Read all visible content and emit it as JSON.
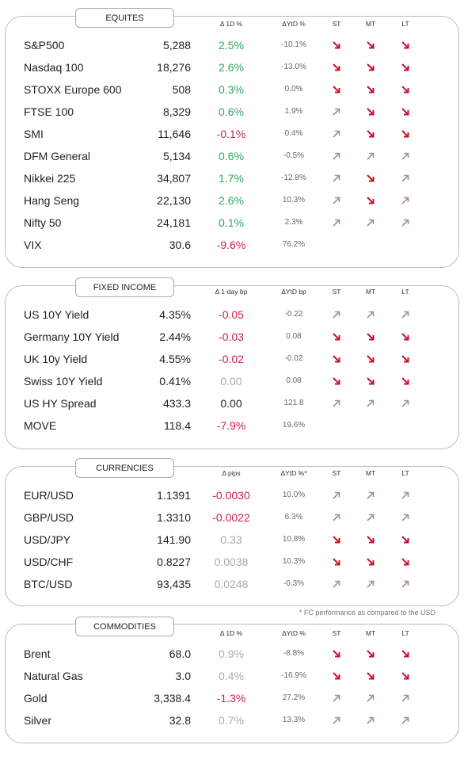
{
  "sections": [
    {
      "title": "EQUITES",
      "columns": [
        "Δ 1D %",
        "ΔYtD %",
        "ST",
        "MT",
        "LT"
      ],
      "rows": [
        {
          "name": "S&P500",
          "value": "5,288",
          "change": "2.5%",
          "change_color": "#2fa65a",
          "ytd": "-10.1%",
          "trends": [
            "down",
            "down",
            "down"
          ]
        },
        {
          "name": "Nasdaq 100",
          "value": "18,276",
          "change": "2.6%",
          "change_color": "#2fa65a",
          "ytd": "-13.0%",
          "trends": [
            "down",
            "down",
            "down"
          ]
        },
        {
          "name": "STOXX Europe 600",
          "value": "508",
          "change": "0.3%",
          "change_color": "#2fa65a",
          "ytd": "0.0%",
          "trends": [
            "down",
            "down",
            "down"
          ]
        },
        {
          "name": "FTSE 100",
          "value": "8,329",
          "change": "0.6%",
          "change_color": "#2fa65a",
          "ytd": "1.9%",
          "trends": [
            "up",
            "down",
            "down"
          ]
        },
        {
          "name": "SMI",
          "value": "11,646",
          "change": "-0.1%",
          "change_color": "#d0204a",
          "ytd": "0.4%",
          "trends": [
            "up",
            "down",
            "down"
          ]
        },
        {
          "name": "DFM General",
          "value": "5,134",
          "change": "0.6%",
          "change_color": "#2fa65a",
          "ytd": "-0.5%",
          "trends": [
            "up",
            "up",
            "up"
          ]
        },
        {
          "name": "Nikkei 225",
          "value": "34,807",
          "change": "1.7%",
          "change_color": "#2fa65a",
          "ytd": "-12.8%",
          "trends": [
            "up",
            "down",
            "up"
          ]
        },
        {
          "name": "Hang Seng",
          "value": "22,130",
          "change": "2.6%",
          "change_color": "#2fa65a",
          "ytd": "10.3%",
          "trends": [
            "up",
            "down",
            "up"
          ]
        },
        {
          "name": "Nifty 50",
          "value": "24,181",
          "change": "0.1%",
          "change_color": "#2fa65a",
          "ytd": "2.3%",
          "trends": [
            "up",
            "up",
            "up"
          ]
        },
        {
          "name": "VIX",
          "value": "30.6",
          "change": "-9.6%",
          "change_color": "#d0204a",
          "ytd": "76.2%",
          "trends": []
        }
      ]
    },
    {
      "title": "FIXED INCOME",
      "columns": [
        "Δ 1-day bp",
        "ΔYtD bp",
        "ST",
        "MT",
        "LT"
      ],
      "rows": [
        {
          "name": "US 10Y Yield",
          "value": "4.35%",
          "change": "-0.05",
          "change_color": "#d0204a",
          "ytd": "-0.22",
          "trends": [
            "up",
            "up",
            "up"
          ]
        },
        {
          "name": "Germany 10Y Yield",
          "value": "2.44%",
          "change": "-0.03",
          "change_color": "#d0204a",
          "ytd": "0.08",
          "trends": [
            "down",
            "down",
            "down"
          ]
        },
        {
          "name": "UK 10y Yield",
          "value": "4.55%",
          "change": "-0.02",
          "change_color": "#d0204a",
          "ytd": "-0.02",
          "trends": [
            "down",
            "down",
            "down"
          ]
        },
        {
          "name": "Swiss 10Y Yield",
          "value": "0.41%",
          "change": "0.00",
          "change_color": "#aaaaaa",
          "ytd": "0.08",
          "trends": [
            "down",
            "down",
            "down"
          ]
        },
        {
          "name": "US HY Spread",
          "value": "433.3",
          "change": "0.00",
          "change_color": "#222222",
          "ytd": "121.8",
          "trends": [
            "up",
            "up",
            "up"
          ]
        },
        {
          "name": "MOVE",
          "value": "118.4",
          "change": "-7.9%",
          "change_color": "#d0204a",
          "ytd": "19.6%",
          "trends": []
        }
      ]
    },
    {
      "title": "CURRENCIES",
      "columns": [
        "Δ pips",
        "ΔYtD %*",
        "ST",
        "MT",
        "LT"
      ],
      "rows": [
        {
          "name": "EUR/USD",
          "value": "1.1391",
          "change": "-0.0030",
          "change_color": "#d0204a",
          "ytd": "10.0%",
          "trends": [
            "up",
            "up",
            "up"
          ]
        },
        {
          "name": "GBP/USD",
          "value": "1.3310",
          "change": "-0.0022",
          "change_color": "#d0204a",
          "ytd": "6.3%",
          "trends": [
            "up",
            "up",
            "up"
          ]
        },
        {
          "name": "USD/JPY",
          "value": "141.90",
          "change": "0.33",
          "change_color": "#aaaaaa",
          "ytd": "10.8%",
          "trends": [
            "down",
            "down",
            "down"
          ]
        },
        {
          "name": "USD/CHF",
          "value": "0.8227",
          "change": "0.0038",
          "change_color": "#aaaaaa",
          "ytd": "10.3%",
          "trends": [
            "down",
            "down",
            "down"
          ]
        },
        {
          "name": "BTC/USD",
          "value": "93,435",
          "change": "0.0248",
          "change_color": "#aaaaaa",
          "ytd": "-0.3%",
          "trends": [
            "up",
            "up",
            "up"
          ]
        }
      ]
    },
    {
      "title": "COMMODITIES",
      "columns": [
        "Δ 1D %",
        "ΔYtD %",
        "ST",
        "MT",
        "LT"
      ],
      "rows": [
        {
          "name": "Brent",
          "value": "68.0",
          "change": "0.9%",
          "change_color": "#aaaaaa",
          "ytd": "-8.8%",
          "trends": [
            "down",
            "down",
            "down"
          ]
        },
        {
          "name": "Natural Gas",
          "value": "3.0",
          "change": "0.4%",
          "change_color": "#aaaaaa",
          "ytd": "-16.9%",
          "trends": [
            "down",
            "down",
            "down"
          ]
        },
        {
          "name": "Gold",
          "value": "3,338.4",
          "change": "-1.3%",
          "change_color": "#d0204a",
          "ytd": "27.2%",
          "trends": [
            "up",
            "up",
            "up"
          ]
        },
        {
          "name": "Silver",
          "value": "32.8",
          "change": "0.7%",
          "change_color": "#aaaaaa",
          "ytd": "13.3%",
          "trends": [
            "up",
            "up",
            "up"
          ]
        }
      ]
    }
  ],
  "footnote": "* FC performance as compared to the USD"
}
